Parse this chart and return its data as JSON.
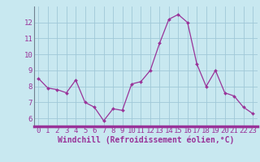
{
  "x": [
    0,
    1,
    2,
    3,
    4,
    5,
    6,
    7,
    8,
    9,
    10,
    11,
    12,
    13,
    14,
    15,
    16,
    17,
    18,
    19,
    20,
    21,
    22,
    23
  ],
  "y": [
    8.5,
    7.9,
    7.8,
    7.6,
    8.4,
    7.0,
    6.7,
    5.85,
    6.6,
    6.5,
    8.15,
    8.3,
    9.0,
    10.7,
    12.2,
    12.5,
    12.0,
    9.4,
    8.0,
    9.0,
    7.6,
    7.4,
    6.7,
    6.3
  ],
  "line_color": "#993399",
  "marker_color": "#993399",
  "bg_color": "#c8e8f0",
  "plot_bg_color": "#c8e8f0",
  "grid_color": "#a0c8d8",
  "axis_color": "#993399",
  "bottom_bar_color": "#993399",
  "xlabel": "Windchill (Refroidissement éolien,°C)",
  "xlim": [
    -0.5,
    23.5
  ],
  "ylim": [
    5.5,
    13.0
  ],
  "yticks": [
    6,
    7,
    8,
    9,
    10,
    11,
    12
  ],
  "xticks": [
    0,
    1,
    2,
    3,
    4,
    5,
    6,
    7,
    8,
    9,
    10,
    11,
    12,
    13,
    14,
    15,
    16,
    17,
    18,
    19,
    20,
    21,
    22,
    23
  ],
  "font_color": "#993399",
  "tick_font_size": 6.5,
  "label_font_size": 7.0
}
